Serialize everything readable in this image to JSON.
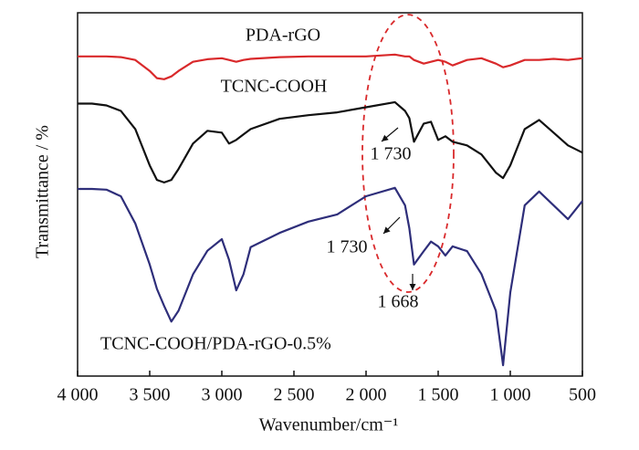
{
  "chart_data": {
    "type": "line",
    "x_label": "Wavenumber/cm⁻¹",
    "y_label": "Transmittance / %",
    "x": [
      4000,
      3900,
      3800,
      3700,
      3600,
      3500,
      3450,
      3400,
      3350,
      3300,
      3200,
      3100,
      3000,
      2950,
      2900,
      2850,
      2800,
      2600,
      2400,
      2200,
      2000,
      1800,
      1730,
      1700,
      1668,
      1600,
      1550,
      1500,
      1450,
      1400,
      1300,
      1200,
      1100,
      1050,
      1000,
      900,
      800,
      700,
      600,
      500
    ],
    "series": [
      {
        "name": "PDA-rGO",
        "color": "#d9292b",
        "values": [
          88,
          88,
          88,
          87.8,
          87,
          84,
          82,
          81.7,
          82.5,
          84,
          86.5,
          87.2,
          87.5,
          87,
          86.5,
          87,
          87.3,
          87.8,
          88,
          88,
          88,
          88.5,
          88,
          88,
          87,
          86,
          86.5,
          87,
          86.5,
          85.5,
          87,
          87.5,
          86,
          85,
          85.5,
          87,
          87,
          87.3,
          87,
          87.5
        ]
      },
      {
        "name": "TCNC-COOH",
        "color": "#111111",
        "values": [
          75,
          75,
          74.5,
          73,
          68,
          58,
          54,
          53.3,
          54,
          57,
          64,
          67.5,
          67,
          64,
          65,
          66.5,
          68,
          70.8,
          71.8,
          72.6,
          74,
          75.4,
          73,
          71,
          64.5,
          69.5,
          70,
          65,
          66,
          64.5,
          63.5,
          61,
          56,
          54.5,
          58,
          68,
          70.5,
          67,
          63.5,
          61.5
        ]
      },
      {
        "name": "TCNC-COOH/PDA-rGO-0.5%",
        "color": "#2e2e7a",
        "values": [
          51.5,
          51.5,
          51.3,
          49.5,
          42,
          30.7,
          24,
          19.3,
          15,
          18,
          28,
          34.5,
          37.7,
          32,
          23.6,
          28,
          35.5,
          39.4,
          42.5,
          44.5,
          49.5,
          51.8,
          47,
          40.7,
          30.7,
          34.4,
          37,
          35.7,
          33.2,
          35.7,
          34.4,
          28.1,
          18,
          3,
          23,
          47,
          50.8,
          47,
          43.2,
          48.2
        ]
      }
    ],
    "annotations": [
      "1 730",
      "1 730",
      "1 668"
    ],
    "xlim": [
      4000,
      500
    ],
    "ylim": [
      0,
      100
    ],
    "xticks": [
      {
        "value": 4000,
        "label": "4 000"
      },
      {
        "value": 3500,
        "label": "3 500"
      },
      {
        "value": 3000,
        "label": "3 000"
      },
      {
        "value": 2500,
        "label": "2 500"
      },
      {
        "value": 2000,
        "label": "2 000"
      },
      {
        "value": 1500,
        "label": "1 500"
      },
      {
        "value": 1000,
        "label": "1 000"
      },
      500
    ]
  }
}
